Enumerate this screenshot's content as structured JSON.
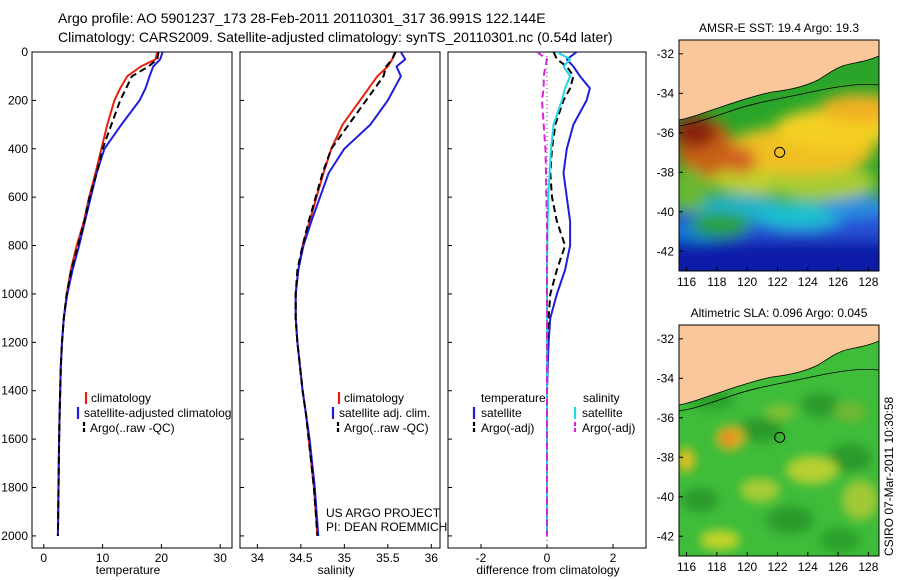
{
  "header": {
    "line1": "Argo profile: AO 5901237_173 28-Feb-2011 20110301_317 36.991S 122.144E",
    "line2": "Climatology: CARS2009. Satellite-adjusted climatology: synTS_20110301.nc (0.54d later)"
  },
  "colors": {
    "climatology": "#e8200f",
    "satellite": "#1e1edc",
    "argo": "#000000",
    "salinity_sat": "#22d8e8",
    "salinity_argo": "#e020e0",
    "land": "#f9c79a"
  },
  "chart_data": [
    {
      "type": "line",
      "name": "temperature-profile",
      "xlabel": "temperature",
      "xlim": [
        -2,
        32
      ],
      "ylim": [
        2050,
        0
      ],
      "xticks": [
        "0",
        "10",
        "20",
        "30"
      ],
      "yticks": [
        "0",
        "200",
        "400",
        "600",
        "800",
        "1000",
        "1200",
        "1400",
        "1600",
        "1800",
        "2000"
      ],
      "legend": [
        "climatology",
        "satellite-adjusted climatolog",
        "Argo(..raw -QC)"
      ],
      "depth": [
        0,
        30,
        60,
        100,
        150,
        200,
        300,
        400,
        500,
        600,
        700,
        800,
        900,
        1000,
        1100,
        1200,
        1300,
        1400,
        1500,
        1600,
        1700,
        1800,
        1900,
        2000
      ],
      "series": [
        {
          "name": "climatology",
          "color": "#e8200f",
          "values": [
            19.3,
            19.0,
            16.5,
            14.2,
            13.0,
            12.0,
            10.8,
            9.8,
            8.8,
            7.7,
            6.8,
            5.6,
            4.6,
            3.9,
            3.4,
            3.1,
            2.9,
            2.8,
            2.7,
            2.6,
            2.55,
            2.5,
            2.45,
            2.4
          ]
        },
        {
          "name": "satellite-adjusted climatolog",
          "color": "#1e1edc",
          "values": [
            20.2,
            19.8,
            18.6,
            18.0,
            17.3,
            16.3,
            13.2,
            10.3,
            9.0,
            8.0,
            7.0,
            6.0,
            4.9,
            4.0,
            3.4,
            3.1,
            2.9,
            2.8,
            2.7,
            2.6,
            2.55,
            2.5,
            2.45,
            2.4
          ]
        },
        {
          "name": "Argo(..raw -QC)",
          "color": "#000000",
          "values": [
            19.5,
            19.3,
            17.8,
            15.0,
            14.0,
            13.0,
            11.5,
            10.0,
            9.0,
            7.8,
            6.9,
            5.8,
            4.7,
            3.9,
            3.4,
            3.1,
            2.9,
            2.8,
            2.7,
            2.6,
            2.55,
            2.5,
            2.45,
            2.4
          ]
        }
      ]
    },
    {
      "type": "line",
      "name": "salinity-profile",
      "xlabel": "salinity",
      "xlim": [
        33.8,
        36.1
      ],
      "ylim": [
        2050,
        0
      ],
      "xticks": [
        "34",
        "34.5",
        "35",
        "35.5",
        "36"
      ],
      "legend": [
        "climatology",
        "satellite adj. clim.",
        "Argo(..raw -QC)"
      ],
      "depth": [
        0,
        30,
        60,
        100,
        200,
        300,
        400,
        500,
        600,
        700,
        800,
        900,
        1000,
        1100,
        1200,
        1300,
        1400,
        1500,
        1600,
        1700,
        1800,
        1900,
        2000
      ],
      "series": [
        {
          "name": "climatology",
          "color": "#e8200f",
          "values": [
            35.58,
            35.55,
            35.5,
            35.38,
            35.18,
            34.98,
            34.85,
            34.76,
            34.68,
            34.6,
            34.52,
            34.47,
            34.44,
            34.44,
            34.46,
            34.49,
            34.52,
            34.56,
            34.59,
            34.62,
            34.65,
            34.67,
            34.69
          ]
        },
        {
          "name": "satellite adj. clim.",
          "color": "#1e1edc",
          "values": [
            35.65,
            35.7,
            35.6,
            35.65,
            35.5,
            35.3,
            35.0,
            34.82,
            34.72,
            34.62,
            34.53,
            34.47,
            34.44,
            34.44,
            34.46,
            34.49,
            34.52,
            34.56,
            34.6,
            34.63,
            34.66,
            34.68,
            34.7
          ]
        },
        {
          "name": "Argo(..raw -QC)",
          "color": "#000000",
          "values": [
            35.59,
            35.55,
            35.48,
            35.45,
            35.25,
            35.05,
            34.85,
            34.75,
            34.67,
            34.59,
            34.52,
            34.46,
            34.44,
            34.44,
            34.46,
            34.49,
            34.52,
            34.56,
            34.59,
            34.62,
            34.65,
            34.67,
            34.69
          ]
        }
      ],
      "credit": [
        "US ARGO PROJECT",
        "PI: DEAN ROEMMICH"
      ]
    },
    {
      "type": "line",
      "name": "difference-profile",
      "xlabel": "difference from climatology",
      "xlim": [
        -3,
        3
      ],
      "ylim": [
        2050,
        0
      ],
      "xticks": [
        "-2",
        "0",
        "2"
      ],
      "legend_groups": [
        {
          "title": "temperature",
          "items": [
            "satellite",
            "Argo(-adj)"
          ]
        },
        {
          "title": "salinity",
          "items": [
            "satellite",
            "Argo(-adj)"
          ]
        }
      ],
      "depth": [
        0,
        30,
        60,
        100,
        150,
        200,
        300,
        400,
        500,
        600,
        700,
        800,
        900,
        1000,
        1100,
        1200,
        1300,
        1400,
        1500,
        1600,
        1700,
        1800,
        1900,
        2000
      ],
      "series": [
        {
          "name": "temperature satellite",
          "color": "#1e1edc",
          "values": [
            0.9,
            0.6,
            0.8,
            1.0,
            1.3,
            1.2,
            0.8,
            0.6,
            0.5,
            0.6,
            0.7,
            0.7,
            0.55,
            0.3,
            0.1,
            0.05,
            0.02,
            0.0,
            0.0,
            0.0,
            0.0,
            0.0,
            0.0,
            0.0
          ]
        },
        {
          "name": "temperature Argo(-adj)",
          "color": "#000000",
          "values": [
            0.2,
            0.3,
            0.6,
            0.8,
            0.7,
            0.5,
            0.25,
            0.15,
            0.1,
            0.15,
            0.3,
            0.55,
            0.3,
            0.1,
            0.05,
            0.0,
            0.0,
            0.0,
            0.0,
            0.0,
            0.0,
            0.0,
            0.0,
            0.0
          ]
        },
        {
          "name": "salinity satellite",
          "color": "#22d8e8",
          "values": [
            0.3,
            0.7,
            0.5,
            0.7,
            0.55,
            0.45,
            0.2,
            0.12,
            0.08,
            0.04,
            0.02,
            0.01,
            0.0,
            0.0,
            0.0,
            0.0,
            0.0,
            0.0,
            0.0,
            0.0,
            0.0,
            0.0,
            0.0,
            0.0
          ]
        },
        {
          "name": "salinity Argo(-adj)",
          "color": "#e020e0",
          "values": [
            -0.3,
            0.0,
            -0.05,
            -0.1,
            -0.1,
            -0.15,
            -0.1,
            -0.05,
            -0.03,
            -0.02,
            0.0,
            0.0,
            0.0,
            0.0,
            0.0,
            0.0,
            0.0,
            0.0,
            0.0,
            0.0,
            0.0,
            0.0,
            0.0,
            0.0
          ]
        }
      ]
    },
    {
      "type": "heatmap",
      "name": "sst-map",
      "title": "AMSR-E SST: 19.4 Argo: 19.3",
      "xlim": [
        115.5,
        128.7
      ],
      "ylim": [
        -43,
        -31.3
      ],
      "xticks": [
        "116",
        "118",
        "120",
        "122",
        "124",
        "126",
        "128"
      ],
      "yticks": [
        "-32",
        "-34",
        "-36",
        "-38",
        "-40",
        "-42"
      ],
      "float_position": [
        122.144,
        -36.991
      ]
    },
    {
      "type": "heatmap",
      "name": "sla-map",
      "title": "Altimetric SLA: 0.096 Argo: 0.045",
      "xlim": [
        115.5,
        128.7
      ],
      "ylim": [
        -43,
        -31.3
      ],
      "xticks": [
        "116",
        "118",
        "120",
        "122",
        "124",
        "126",
        "128"
      ],
      "yticks": [
        "-32",
        "-34",
        "-36",
        "-38",
        "-40",
        "-42"
      ],
      "float_position": [
        122.144,
        -36.991
      ]
    }
  ],
  "footer": {
    "stamp": "CSIRO 07-Mar-2011 10:30:58"
  }
}
